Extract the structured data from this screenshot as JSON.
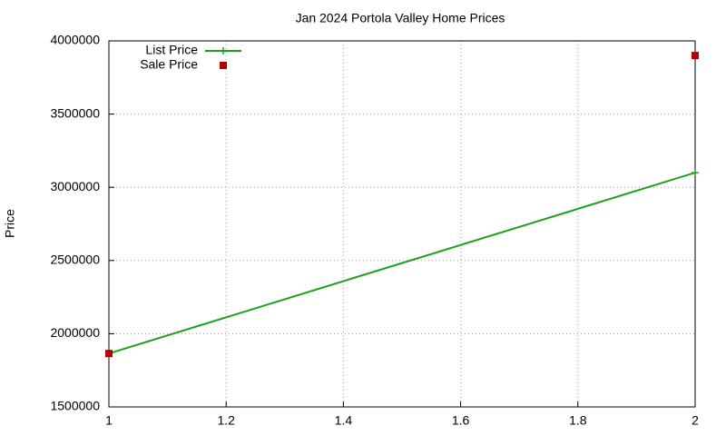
{
  "chart_data": {
    "type": "line",
    "title": "Jan 2024 Portola Valley Home Prices",
    "y_label": "Price",
    "x": [
      1,
      2
    ],
    "series": [
      {
        "name": "List Price",
        "color": "#1ea01e",
        "values": [
          1865000,
          3100000
        ],
        "marker": "plus",
        "show_line": true
      },
      {
        "name": "Sale Price",
        "color": "#b40000",
        "values": [
          1865000,
          3900000
        ],
        "marker": "square",
        "show_line": false
      }
    ],
    "xlim": [
      1,
      2
    ],
    "xticks": [
      1,
      1.2,
      1.4,
      1.6,
      1.8,
      2
    ],
    "ylim": [
      1500000,
      4000000
    ],
    "yticks": [
      1500000,
      2000000,
      2500000,
      3000000,
      3500000,
      4000000
    ],
    "grid": true,
    "legend": "top-left"
  }
}
